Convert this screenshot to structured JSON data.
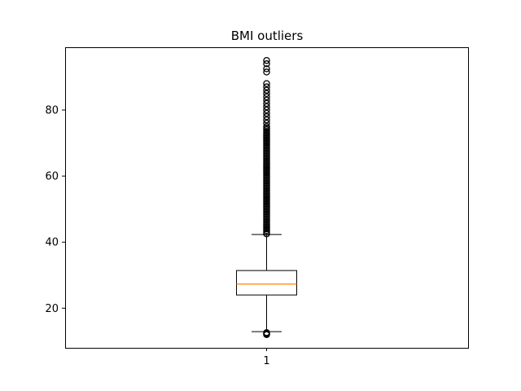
{
  "chart_data": {
    "type": "boxplot",
    "title": "BMI outliers",
    "xlabel": "",
    "ylabel": "",
    "categories": [
      "1"
    ],
    "ylim": [
      8,
      99
    ],
    "yticks": [
      20,
      40,
      60,
      80
    ],
    "box": {
      "whisker_low": 12.9,
      "q1": 24.0,
      "median": 27.3,
      "q3": 31.4,
      "whisker_high": 42.3
    },
    "outliers_low": [
      12.0,
      12.3,
      12.6
    ],
    "outliers_high": [
      42.5,
      43,
      43.5,
      44,
      44.5,
      45,
      45.5,
      46,
      46.5,
      47,
      47.5,
      48,
      48.5,
      49,
      49.5,
      50,
      50.5,
      51,
      51.5,
      52,
      52.5,
      53,
      53.5,
      54,
      54.5,
      55,
      55.5,
      56,
      56.5,
      57,
      57.5,
      58,
      58.5,
      59,
      59.5,
      60,
      60.5,
      61,
      61.5,
      62,
      62.5,
      63,
      63.5,
      64,
      64.5,
      65,
      65.5,
      66,
      66.5,
      67,
      67.5,
      68,
      68.5,
      69,
      69.5,
      70,
      70.5,
      71,
      71.5,
      72,
      72.5,
      73,
      73.5,
      74,
      74.5,
      75,
      76,
      77,
      78,
      79,
      80,
      81,
      82,
      83,
      84,
      85,
      86,
      87,
      88,
      91.5,
      92.5,
      94,
      95
    ],
    "grid": false,
    "colors": {
      "box": "#000000",
      "median": "#ff7f0e",
      "outlier": "#000000"
    }
  }
}
